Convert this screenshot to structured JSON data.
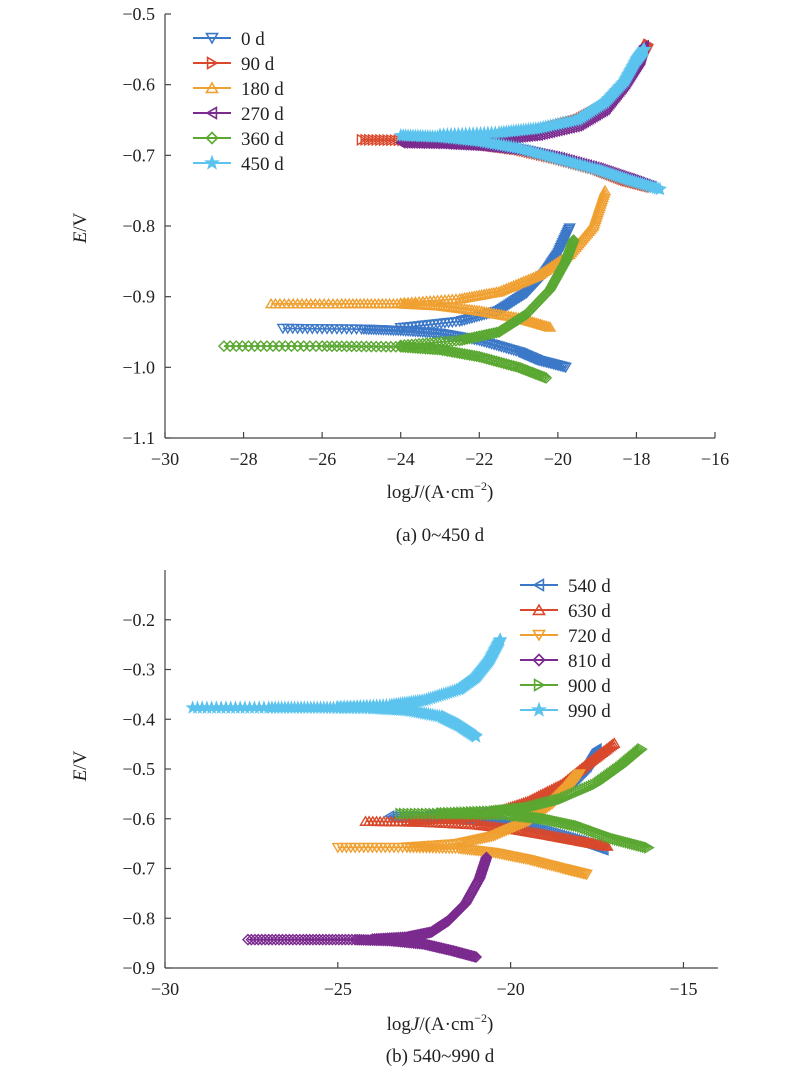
{
  "figure": {
    "panels": [
      {
        "caption": "(a) 0~450 d",
        "xlabel_prefix": "log",
        "xlabel_italic": "J",
        "xlabel_suffix": "/(A·cm",
        "xlabel_sup": "−2",
        "xlabel_close": ")",
        "ylabel_italic": "E",
        "ylabel_suffix": "/V",
        "xticks": [
          "−30",
          "−28",
          "−26",
          "−24",
          "−22",
          "−20",
          "−18",
          "−16"
        ],
        "yticks": [
          "−0.5",
          "−0.6",
          "−0.7",
          "−0.8",
          "−0.9",
          "−1.0",
          "−1.1"
        ]
      },
      {
        "caption": "(b) 540~990 d",
        "xlabel_prefix": "log",
        "xlabel_italic": "J",
        "xlabel_suffix": "/(A·cm",
        "xlabel_sup": "−2",
        "xlabel_close": ")",
        "ylabel_italic": "E",
        "ylabel_suffix": "/V",
        "xticks": [
          "−30",
          "−25",
          "−20",
          "−15"
        ],
        "yticks": [
          "−0.2",
          "−0.3",
          "−0.4",
          "−0.5",
          "−0.6",
          "−0.7",
          "−0.8",
          "−0.9"
        ]
      }
    ]
  },
  "chart_data": [
    {
      "type": "line",
      "xlim": [
        -30,
        -16
      ],
      "ylim": [
        -1.1,
        -0.5
      ],
      "grid": false,
      "legend_position": "top-left",
      "series": [
        {
          "name": "0 d",
          "color": "#3c78c8",
          "marker": "triangle-down",
          "ecorr": -0.945,
          "cathodic": [
            [
              -27.0,
              -0.945
            ],
            [
              -25.0,
              -0.946
            ],
            [
              -24.0,
              -0.948
            ],
            [
              -23.0,
              -0.952
            ],
            [
              -22.0,
              -0.962
            ],
            [
              -21.0,
              -0.978
            ],
            [
              -20.5,
              -0.99
            ],
            [
              -19.8,
              -1.0
            ]
          ],
          "anodic": [
            [
              -24.0,
              -0.944
            ],
            [
              -22.5,
              -0.935
            ],
            [
              -21.5,
              -0.92
            ],
            [
              -20.8,
              -0.895
            ],
            [
              -20.3,
              -0.865
            ],
            [
              -20.0,
              -0.84
            ],
            [
              -19.7,
              -0.803
            ]
          ]
        },
        {
          "name": "90 d",
          "color": "#d9482b",
          "marker": "triangle-right",
          "ecorr": -0.678,
          "cathodic": [
            [
              -25.0,
              -0.678
            ],
            [
              -23.5,
              -0.679
            ],
            [
              -22.0,
              -0.684
            ],
            [
              -21.0,
              -0.692
            ],
            [
              -20.0,
              -0.705
            ],
            [
              -19.0,
              -0.72
            ],
            [
              -18.3,
              -0.735
            ],
            [
              -17.6,
              -0.745
            ]
          ],
          "anodic": [
            [
              -23.0,
              -0.677
            ],
            [
              -21.5,
              -0.672
            ],
            [
              -20.5,
              -0.665
            ],
            [
              -19.5,
              -0.65
            ],
            [
              -18.8,
              -0.63
            ],
            [
              -18.3,
              -0.6
            ],
            [
              -17.9,
              -0.565
            ],
            [
              -17.7,
              -0.543
            ]
          ]
        },
        {
          "name": "180 d",
          "color": "#f0a030",
          "marker": "triangle-up",
          "ecorr": -0.91,
          "cathodic": [
            [
              -27.3,
              -0.91
            ],
            [
              -25.5,
              -0.91
            ],
            [
              -24.0,
              -0.91
            ],
            [
              -23.0,
              -0.913
            ],
            [
              -22.0,
              -0.92
            ],
            [
              -21.0,
              -0.93
            ],
            [
              -20.2,
              -0.943
            ]
          ],
          "anodic": [
            [
              -24.0,
              -0.909
            ],
            [
              -22.5,
              -0.903
            ],
            [
              -21.5,
              -0.893
            ],
            [
              -20.5,
              -0.87
            ],
            [
              -19.7,
              -0.84
            ],
            [
              -19.1,
              -0.8
            ],
            [
              -18.8,
              -0.75
            ]
          ]
        },
        {
          "name": "270 d",
          "color": "#7b2a8e",
          "marker": "triangle-left",
          "ecorr": -0.682,
          "cathodic": [
            [
              -24.0,
              -0.682
            ],
            [
              -23.0,
              -0.683
            ],
            [
              -22.0,
              -0.686
            ],
            [
              -21.0,
              -0.692
            ],
            [
              -20.0,
              -0.703
            ],
            [
              -19.0,
              -0.718
            ],
            [
              -18.2,
              -0.733
            ],
            [
              -17.6,
              -0.745
            ]
          ],
          "anodic": [
            [
              -23.0,
              -0.681
            ],
            [
              -21.5,
              -0.677
            ],
            [
              -20.5,
              -0.671
            ],
            [
              -19.5,
              -0.658
            ],
            [
              -18.8,
              -0.635
            ],
            [
              -18.3,
              -0.6
            ],
            [
              -17.9,
              -0.565
            ],
            [
              -17.8,
              -0.545
            ]
          ]
        },
        {
          "name": "360 d",
          "color": "#5aa832",
          "marker": "diamond",
          "ecorr": -0.97,
          "cathodic": [
            [
              -28.5,
              -0.97
            ],
            [
              -26.0,
              -0.97
            ],
            [
              -24.0,
              -0.971
            ],
            [
              -23.0,
              -0.975
            ],
            [
              -22.0,
              -0.985
            ],
            [
              -21.0,
              -1.0
            ],
            [
              -20.3,
              -1.015
            ]
          ],
          "anodic": [
            [
              -24.0,
              -0.969
            ],
            [
              -22.5,
              -0.962
            ],
            [
              -21.5,
              -0.95
            ],
            [
              -20.8,
              -0.925
            ],
            [
              -20.2,
              -0.89
            ],
            [
              -19.8,
              -0.85
            ],
            [
              -19.6,
              -0.82
            ]
          ]
        },
        {
          "name": "450 d",
          "color": "#5bc3ee",
          "marker": "star",
          "ecorr": -0.672,
          "cathodic": [
            [
              -24.0,
              -0.672
            ],
            [
              -23.0,
              -0.674
            ],
            [
              -22.0,
              -0.68
            ],
            [
              -21.0,
              -0.69
            ],
            [
              -20.0,
              -0.705
            ],
            [
              -19.0,
              -0.72
            ],
            [
              -18.2,
              -0.735
            ],
            [
              -17.4,
              -0.748
            ]
          ],
          "anodic": [
            [
              -23.0,
              -0.671
            ],
            [
              -21.5,
              -0.668
            ],
            [
              -20.5,
              -0.662
            ],
            [
              -19.5,
              -0.65
            ],
            [
              -18.8,
              -0.625
            ],
            [
              -18.3,
              -0.595
            ],
            [
              -18.0,
              -0.565
            ],
            [
              -17.8,
              -0.55
            ]
          ]
        }
      ]
    },
    {
      "type": "line",
      "xlim": [
        -30,
        -14
      ],
      "ylim": [
        -0.9,
        -0.1
      ],
      "grid": false,
      "legend_position": "top-right",
      "series": [
        {
          "name": "540 d",
          "color": "#3c78c8",
          "marker": "triangle-left",
          "ecorr": -0.595,
          "cathodic": [
            [
              -23.5,
              -0.595
            ],
            [
              -22.0,
              -0.597
            ],
            [
              -21.0,
              -0.602
            ],
            [
              -20.0,
              -0.61
            ],
            [
              -19.0,
              -0.625
            ],
            [
              -18.0,
              -0.645
            ],
            [
              -17.3,
              -0.662
            ]
          ],
          "anodic": [
            [
              -22.5,
              -0.594
            ],
            [
              -21.0,
              -0.59
            ],
            [
              -20.0,
              -0.58
            ],
            [
              -19.0,
              -0.56
            ],
            [
              -18.3,
              -0.53
            ],
            [
              -17.8,
              -0.495
            ],
            [
              -17.5,
              -0.46
            ]
          ]
        },
        {
          "name": "630 d",
          "color": "#d9482b",
          "marker": "triangle-up",
          "ecorr": -0.605,
          "cathodic": [
            [
              -24.2,
              -0.605
            ],
            [
              -22.5,
              -0.607
            ],
            [
              -21.0,
              -0.612
            ],
            [
              -20.0,
              -0.62
            ],
            [
              -19.0,
              -0.632
            ],
            [
              -18.0,
              -0.645
            ],
            [
              -17.2,
              -0.655
            ]
          ],
          "anodic": [
            [
              -23.0,
              -0.604
            ],
            [
              -21.5,
              -0.598
            ],
            [
              -20.5,
              -0.588
            ],
            [
              -19.5,
              -0.565
            ],
            [
              -18.5,
              -0.53
            ],
            [
              -17.7,
              -0.485
            ],
            [
              -17.0,
              -0.448
            ]
          ]
        },
        {
          "name": "720 d",
          "color": "#f0a030",
          "marker": "triangle-down",
          "ecorr": -0.658,
          "cathodic": [
            [
              -25.0,
              -0.658
            ],
            [
              -23.0,
              -0.658
            ],
            [
              -21.5,
              -0.66
            ],
            [
              -20.5,
              -0.668
            ],
            [
              -19.5,
              -0.682
            ],
            [
              -18.5,
              -0.7
            ],
            [
              -17.8,
              -0.712
            ]
          ],
          "anodic": [
            [
              -23.0,
              -0.657
            ],
            [
              -21.5,
              -0.65
            ],
            [
              -20.5,
              -0.635
            ],
            [
              -19.5,
              -0.605
            ],
            [
              -18.8,
              -0.57
            ],
            [
              -18.3,
              -0.535
            ],
            [
              -18.0,
              -0.51
            ]
          ]
        },
        {
          "name": "810 d",
          "color": "#7b2a8e",
          "marker": "diamond",
          "ecorr": -0.843,
          "cathodic": [
            [
              -27.6,
              -0.843
            ],
            [
              -26.0,
              -0.843
            ],
            [
              -24.5,
              -0.843
            ],
            [
              -23.5,
              -0.845
            ],
            [
              -22.5,
              -0.852
            ],
            [
              -21.7,
              -0.865
            ],
            [
              -21.0,
              -0.878
            ]
          ],
          "anodic": [
            [
              -24.0,
              -0.842
            ],
            [
              -23.0,
              -0.838
            ],
            [
              -22.3,
              -0.828
            ],
            [
              -21.8,
              -0.805
            ],
            [
              -21.3,
              -0.77
            ],
            [
              -20.9,
              -0.72
            ],
            [
              -20.7,
              -0.678
            ]
          ]
        },
        {
          "name": "900 d",
          "color": "#5aa832",
          "marker": "triangle-right",
          "ecorr": -0.59,
          "cathodic": [
            [
              -23.2,
              -0.59
            ],
            [
              -21.5,
              -0.59
            ],
            [
              -20.0,
              -0.592
            ],
            [
              -19.0,
              -0.6
            ],
            [
              -18.0,
              -0.615
            ],
            [
              -17.0,
              -0.64
            ],
            [
              -16.0,
              -0.658
            ]
          ],
          "anodic": [
            [
              -22.0,
              -0.589
            ],
            [
              -20.5,
              -0.585
            ],
            [
              -19.5,
              -0.578
            ],
            [
              -18.5,
              -0.56
            ],
            [
              -17.5,
              -0.53
            ],
            [
              -16.8,
              -0.495
            ],
            [
              -16.2,
              -0.46
            ]
          ]
        },
        {
          "name": "990 d",
          "color": "#5bc3ee",
          "marker": "star",
          "ecorr": -0.377,
          "cathodic": [
            [
              -29.2,
              -0.377
            ],
            [
              -27.0,
              -0.377
            ],
            [
              -25.5,
              -0.377
            ],
            [
              -24.0,
              -0.378
            ],
            [
              -23.0,
              -0.382
            ],
            [
              -22.0,
              -0.395
            ],
            [
              -21.5,
              -0.412
            ],
            [
              -21.0,
              -0.435
            ]
          ],
          "anodic": [
            [
              -25.0,
              -0.376
            ],
            [
              -23.5,
              -0.372
            ],
            [
              -22.5,
              -0.362
            ],
            [
              -21.5,
              -0.34
            ],
            [
              -21.0,
              -0.315
            ],
            [
              -20.6,
              -0.28
            ],
            [
              -20.3,
              -0.24
            ]
          ]
        }
      ]
    }
  ]
}
